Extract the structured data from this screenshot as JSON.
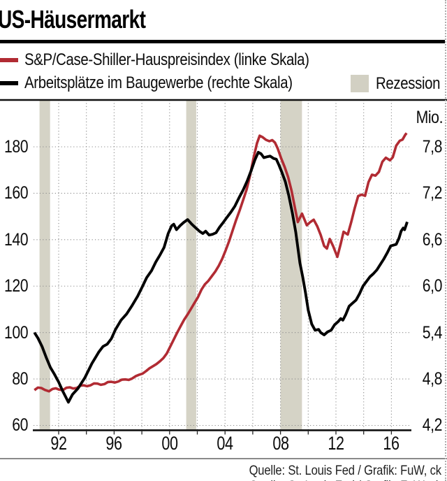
{
  "title": "US-Häusermarkt",
  "footer": {
    "source": "Quelle: St. Louis Fed / Grafik: FuW, ck"
  },
  "chart_data": {
    "type": "line",
    "title": "US-Häusermarkt",
    "legend": [
      {
        "label": "S&P/Case-Shiller-Hauspreisindex (linke Skala)",
        "color": "#b12b33"
      },
      {
        "label": "Arbeitsplätze im Baugewerbe (rechte Skala)",
        "color": "#000000"
      },
      {
        "label": "Rezession",
        "color": "#d2d0c3"
      }
    ],
    "left_axis": {
      "ticks": [
        180,
        160,
        140,
        120,
        100,
        80,
        60
      ],
      "range": [
        60,
        200
      ]
    },
    "right_axis": {
      "unit": "Mio.",
      "ticks": [
        "7,8",
        "7,2",
        "6,6",
        "6,0",
        "5,4",
        "4,8",
        "4,2"
      ],
      "tick_values": [
        7.8,
        7.2,
        6.6,
        6.0,
        5.4,
        4.8,
        4.2
      ],
      "range": [
        4.2,
        8.4
      ]
    },
    "x_axis": {
      "tick_labels": [
        "92",
        "96",
        "00",
        "04",
        "08",
        "12",
        "16"
      ],
      "tick_years": [
        1992,
        1996,
        2000,
        2004,
        2008,
        2012,
        2016
      ],
      "grid_years": [
        1992,
        1994,
        1996,
        1998,
        2000,
        2002,
        2004,
        2006,
        2008,
        2010,
        2012,
        2014,
        2016
      ],
      "range": [
        1990.2,
        2017.35
      ]
    },
    "grid": true,
    "recessions": [
      [
        1990.62,
        1991.38
      ],
      [
        2001.2,
        2001.92
      ],
      [
        2008.0,
        2009.55
      ]
    ],
    "recession_color": "#d5d3c6",
    "series": [
      {
        "name": "S&P/Case-Shiller-Hauspreisindex",
        "axis": "left",
        "color": "#b12b33",
        "width": 3.6,
        "points": [
          [
            1990.25,
            75.2
          ],
          [
            1990.5,
            76.3
          ],
          [
            1990.75,
            76.1
          ],
          [
            1991.0,
            75.3
          ],
          [
            1991.3,
            74.7
          ],
          [
            1991.55,
            75.7
          ],
          [
            1991.8,
            76.0
          ],
          [
            1992.05,
            75.4
          ],
          [
            1992.3,
            75.2
          ],
          [
            1992.55,
            76.2
          ],
          [
            1992.8,
            76.4
          ],
          [
            1993.05,
            75.9
          ],
          [
            1993.3,
            76.1
          ],
          [
            1993.55,
            77.1
          ],
          [
            1993.8,
            77.3
          ],
          [
            1994.05,
            76.9
          ],
          [
            1994.3,
            77.3
          ],
          [
            1994.55,
            78.1
          ],
          [
            1994.8,
            78.0
          ],
          [
            1995.05,
            77.5
          ],
          [
            1995.3,
            77.8
          ],
          [
            1995.55,
            78.7
          ],
          [
            1995.8,
            78.8
          ],
          [
            1996.05,
            78.5
          ],
          [
            1996.3,
            78.9
          ],
          [
            1996.55,
            79.7
          ],
          [
            1996.8,
            79.8
          ],
          [
            1997.05,
            79.6
          ],
          [
            1997.3,
            80.2
          ],
          [
            1997.55,
            81.2
          ],
          [
            1997.8,
            81.8
          ],
          [
            1998.05,
            82.3
          ],
          [
            1998.3,
            83.4
          ],
          [
            1998.55,
            84.6
          ],
          [
            1998.8,
            85.5
          ],
          [
            1999.05,
            86.4
          ],
          [
            1999.3,
            87.6
          ],
          [
            1999.55,
            89.0
          ],
          [
            1999.8,
            91.0
          ],
          [
            2000.05,
            94.0
          ],
          [
            2000.3,
            97.0
          ],
          [
            2000.55,
            100.0
          ],
          [
            2000.8,
            102.8
          ],
          [
            2001.05,
            105.5
          ],
          [
            2001.3,
            107.8
          ],
          [
            2001.55,
            110.3
          ],
          [
            2001.8,
            112.8
          ],
          [
            2002.05,
            115.3
          ],
          [
            2002.3,
            118.5
          ],
          [
            2002.55,
            120.8
          ],
          [
            2002.8,
            122.3
          ],
          [
            2003.05,
            124.3
          ],
          [
            2003.3,
            126.3
          ],
          [
            2003.55,
            128.8
          ],
          [
            2003.8,
            131.8
          ],
          [
            2004.05,
            135.5
          ],
          [
            2004.3,
            139.5
          ],
          [
            2004.55,
            144.0
          ],
          [
            2004.8,
            148.5
          ],
          [
            2005.05,
            152.5
          ],
          [
            2005.3,
            157.0
          ],
          [
            2005.55,
            161.5
          ],
          [
            2005.8,
            167.5
          ],
          [
            2006.05,
            175.0
          ],
          [
            2006.3,
            181.5
          ],
          [
            2006.5,
            184.8
          ],
          [
            2006.7,
            184.2
          ],
          [
            2006.95,
            183.0
          ],
          [
            2007.2,
            182.4
          ],
          [
            2007.4,
            182.9
          ],
          [
            2007.6,
            181.8
          ],
          [
            2007.8,
            179.3
          ],
          [
            2008.05,
            175.0
          ],
          [
            2008.3,
            171.3
          ],
          [
            2008.55,
            167.0
          ],
          [
            2008.8,
            161.0
          ],
          [
            2009.05,
            153.5
          ],
          [
            2009.25,
            147.6
          ],
          [
            2009.55,
            151.2
          ],
          [
            2009.9,
            146.2
          ],
          [
            2010.15,
            147.6
          ],
          [
            2010.4,
            148.6
          ],
          [
            2010.65,
            145.8
          ],
          [
            2010.9,
            142.0
          ],
          [
            2011.15,
            137.3
          ],
          [
            2011.35,
            136.2
          ],
          [
            2011.55,
            140.3
          ],
          [
            2011.8,
            137.2
          ],
          [
            2012.1,
            132.6
          ],
          [
            2012.35,
            138.3
          ],
          [
            2012.55,
            143.4
          ],
          [
            2012.85,
            142.2
          ],
          [
            2013.1,
            147.5
          ],
          [
            2013.35,
            153.5
          ],
          [
            2013.6,
            158.8
          ],
          [
            2013.85,
            159.4
          ],
          [
            2014.1,
            158.9
          ],
          [
            2014.35,
            164.8
          ],
          [
            2014.6,
            168.0
          ],
          [
            2014.85,
            167.6
          ],
          [
            2015.1,
            169.2
          ],
          [
            2015.35,
            173.6
          ],
          [
            2015.6,
            175.3
          ],
          [
            2015.9,
            174.2
          ],
          [
            2016.1,
            175.5
          ],
          [
            2016.35,
            180.5
          ],
          [
            2016.6,
            182.6
          ],
          [
            2016.8,
            183.1
          ],
          [
            2017.0,
            185.2
          ],
          [
            2017.1,
            185.9
          ]
        ]
      },
      {
        "name": "Arbeitsplätze im Baugewerbe",
        "axis": "right",
        "color": "#000000",
        "width": 3.9,
        "points": [
          [
            1990.25,
            5.4
          ],
          [
            1990.5,
            5.33
          ],
          [
            1990.8,
            5.22
          ],
          [
            1991.1,
            5.08
          ],
          [
            1991.4,
            4.95
          ],
          [
            1991.7,
            4.86
          ],
          [
            1992.0,
            4.76
          ],
          [
            1992.3,
            4.64
          ],
          [
            1992.7,
            4.5
          ],
          [
            1993.0,
            4.6
          ],
          [
            1993.4,
            4.68
          ],
          [
            1993.9,
            4.82
          ],
          [
            1994.4,
            5.0
          ],
          [
            1994.9,
            5.15
          ],
          [
            1995.2,
            5.22
          ],
          [
            1995.5,
            5.25
          ],
          [
            1995.8,
            5.32
          ],
          [
            1996.1,
            5.44
          ],
          [
            1996.5,
            5.56
          ],
          [
            1996.9,
            5.64
          ],
          [
            1997.3,
            5.75
          ],
          [
            1997.7,
            5.87
          ],
          [
            1998.0,
            5.98
          ],
          [
            1998.35,
            6.11
          ],
          [
            1998.7,
            6.2
          ],
          [
            1999.0,
            6.31
          ],
          [
            1999.3,
            6.4
          ],
          [
            1999.6,
            6.5
          ],
          [
            1999.9,
            6.68
          ],
          [
            2000.15,
            6.78
          ],
          [
            2000.3,
            6.8
          ],
          [
            2000.5,
            6.73
          ],
          [
            2000.75,
            6.78
          ],
          [
            2001.0,
            6.82
          ],
          [
            2001.3,
            6.86
          ],
          [
            2001.6,
            6.8
          ],
          [
            2001.9,
            6.75
          ],
          [
            2002.15,
            6.71
          ],
          [
            2002.4,
            6.68
          ],
          [
            2002.6,
            6.71
          ],
          [
            2002.85,
            6.66
          ],
          [
            2003.1,
            6.67
          ],
          [
            2003.35,
            6.69
          ],
          [
            2003.6,
            6.76
          ],
          [
            2003.9,
            6.83
          ],
          [
            2004.1,
            6.88
          ],
          [
            2004.4,
            6.95
          ],
          [
            2004.7,
            7.03
          ],
          [
            2005.0,
            7.14
          ],
          [
            2005.3,
            7.24
          ],
          [
            2005.6,
            7.36
          ],
          [
            2005.9,
            7.5
          ],
          [
            2006.15,
            7.63
          ],
          [
            2006.4,
            7.73
          ],
          [
            2006.6,
            7.71
          ],
          [
            2006.8,
            7.66
          ],
          [
            2007.0,
            7.67
          ],
          [
            2007.25,
            7.68
          ],
          [
            2007.5,
            7.65
          ],
          [
            2007.7,
            7.64
          ],
          [
            2007.9,
            7.56
          ],
          [
            2008.1,
            7.47
          ],
          [
            2008.35,
            7.35
          ],
          [
            2008.6,
            7.17
          ],
          [
            2008.85,
            6.95
          ],
          [
            2009.1,
            6.7
          ],
          [
            2009.4,
            6.3
          ],
          [
            2009.6,
            6.12
          ],
          [
            2009.8,
            5.92
          ],
          [
            2010.0,
            5.69
          ],
          [
            2010.25,
            5.51
          ],
          [
            2010.5,
            5.43
          ],
          [
            2010.75,
            5.44
          ],
          [
            2010.9,
            5.4
          ],
          [
            2011.15,
            5.37
          ],
          [
            2011.4,
            5.41
          ],
          [
            2011.65,
            5.43
          ],
          [
            2011.9,
            5.5
          ],
          [
            2012.15,
            5.54
          ],
          [
            2012.35,
            5.58
          ],
          [
            2012.5,
            5.56
          ],
          [
            2012.7,
            5.63
          ],
          [
            2012.95,
            5.74
          ],
          [
            2013.2,
            5.78
          ],
          [
            2013.45,
            5.82
          ],
          [
            2013.7,
            5.9
          ],
          [
            2013.95,
            6.0
          ],
          [
            2014.2,
            6.06
          ],
          [
            2014.45,
            6.12
          ],
          [
            2014.7,
            6.16
          ],
          [
            2014.95,
            6.21
          ],
          [
            2015.2,
            6.28
          ],
          [
            2015.45,
            6.35
          ],
          [
            2015.7,
            6.43
          ],
          [
            2015.95,
            6.52
          ],
          [
            2016.15,
            6.53
          ],
          [
            2016.35,
            6.54
          ],
          [
            2016.55,
            6.62
          ],
          [
            2016.7,
            6.71
          ],
          [
            2016.85,
            6.75
          ],
          [
            2016.95,
            6.73
          ],
          [
            2017.05,
            6.78
          ],
          [
            2017.14,
            6.83
          ]
        ]
      }
    ]
  }
}
